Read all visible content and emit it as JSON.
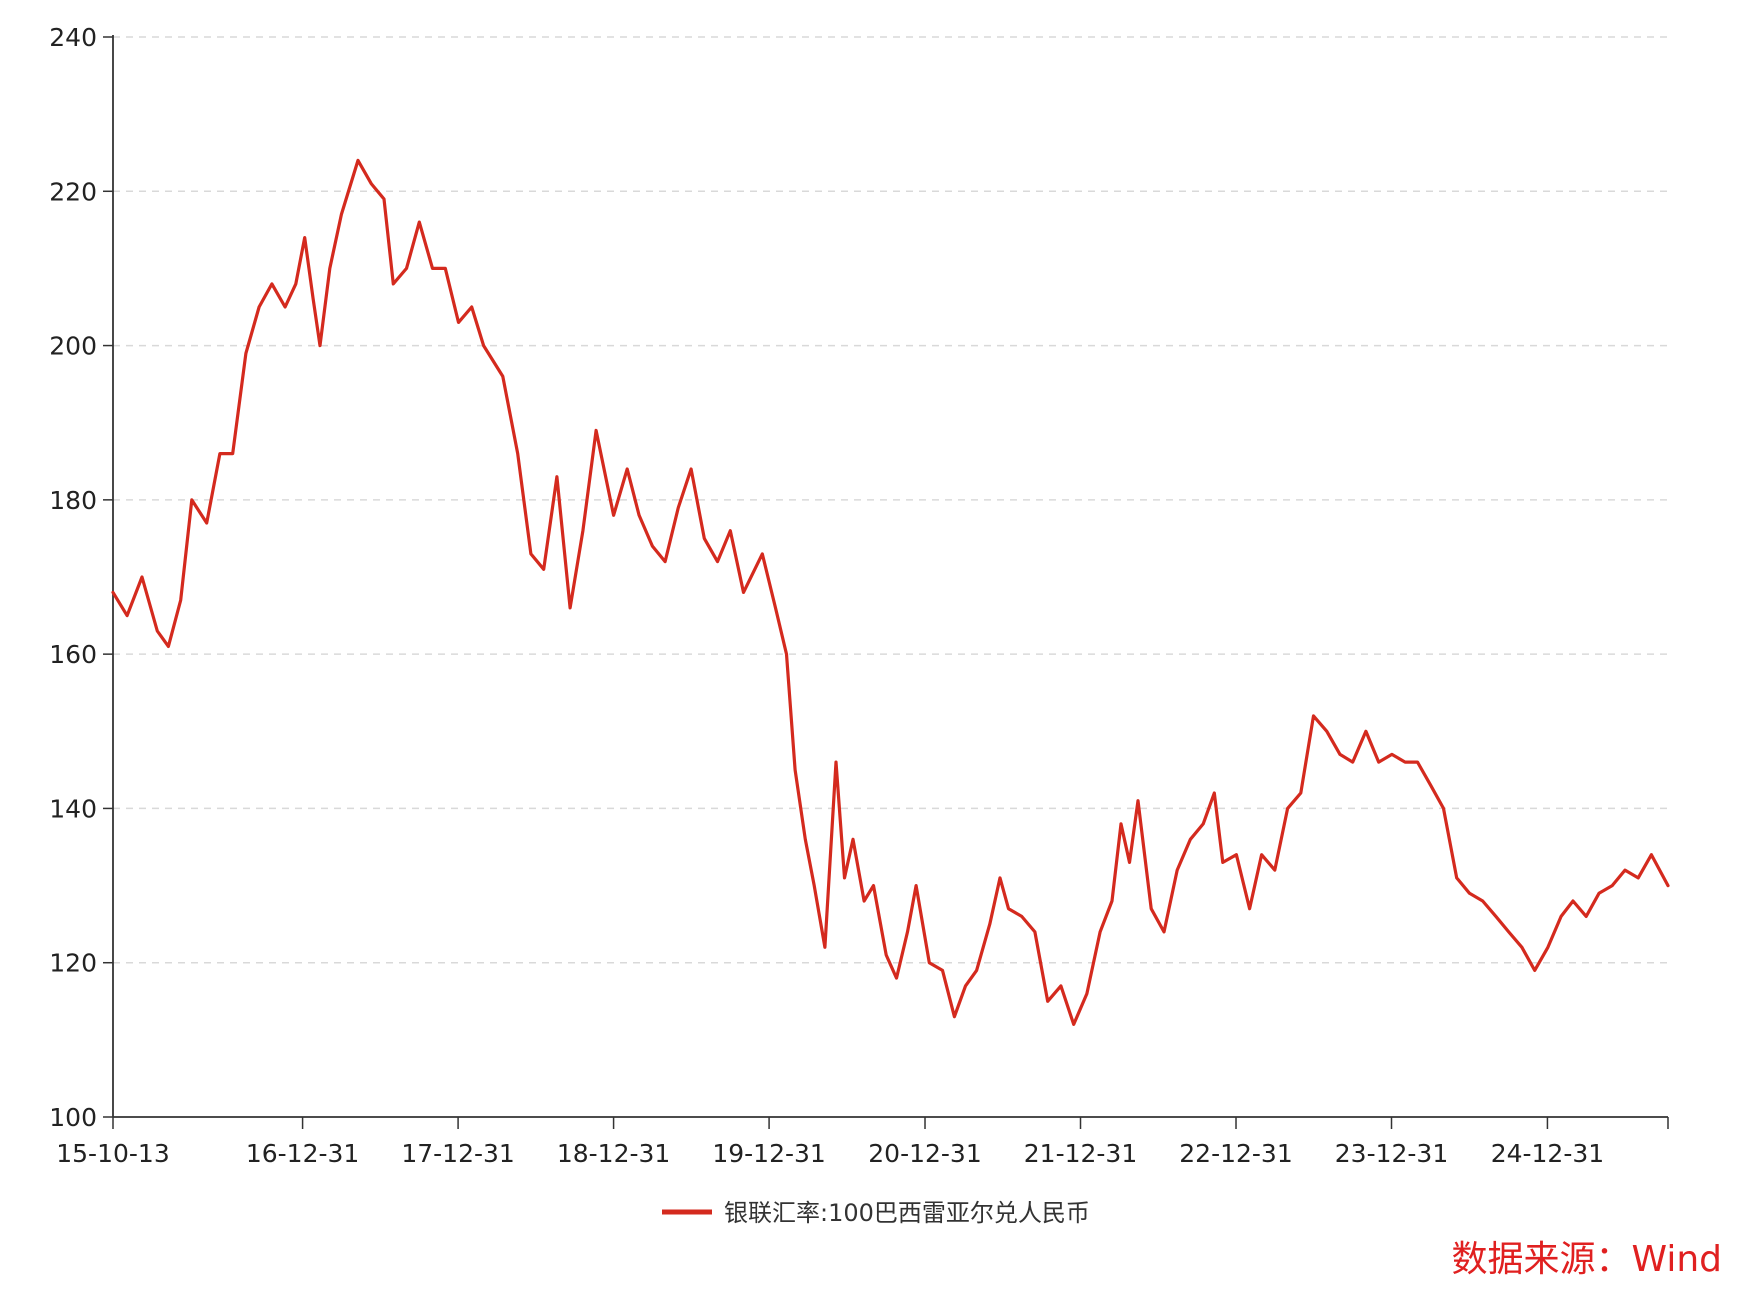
{
  "chart_data": {
    "type": "line",
    "title": "",
    "xlabel": "",
    "ylabel": "",
    "ylim": [
      100,
      240
    ],
    "y_ticks": [
      "100",
      "120",
      "140",
      "160",
      "180",
      "200",
      "220",
      "240"
    ],
    "x_ticks": [
      "15-10-13",
      "16-12-31",
      "17-12-31",
      "18-12-31",
      "19-12-31",
      "20-12-31",
      "21-12-31",
      "22-12-31",
      "23-12-31",
      "24-12-31"
    ],
    "grid": "horizontal-dashed",
    "legend_position": "bottom-center",
    "series": [
      {
        "name": "银联汇率:100巴西雷亚尔兑人民币",
        "color": "#d42a1e",
        "points": [
          [
            "2015-10-13",
            168.0
          ],
          [
            "2015-11-15",
            165.0
          ],
          [
            "2015-12-20",
            170.0
          ],
          [
            "2016-01-25",
            163.0
          ],
          [
            "2016-02-20",
            161.0
          ],
          [
            "2016-03-20",
            167.0
          ],
          [
            "2016-04-15",
            180.0
          ],
          [
            "2016-05-20",
            177.0
          ],
          [
            "2016-06-20",
            186.0
          ],
          [
            "2016-07-20",
            186.0
          ],
          [
            "2016-08-20",
            199.0
          ],
          [
            "2016-09-20",
            205.0
          ],
          [
            "2016-10-20",
            208.0
          ],
          [
            "2016-11-20",
            205.0
          ],
          [
            "2016-12-15",
            208.0
          ],
          [
            "2017-01-05",
            214.0
          ],
          [
            "2017-01-25",
            206.0
          ],
          [
            "2017-02-10",
            200.0
          ],
          [
            "2017-03-05",
            210.0
          ],
          [
            "2017-04-01",
            217.0
          ],
          [
            "2017-05-10",
            224.0
          ],
          [
            "2017-06-10",
            221.0
          ],
          [
            "2017-07-10",
            219.0
          ],
          [
            "2017-08-01",
            208.0
          ],
          [
            "2017-09-01",
            210.0
          ],
          [
            "2017-10-01",
            216.0
          ],
          [
            "2017-11-01",
            210.0
          ],
          [
            "2017-12-01",
            210.0
          ],
          [
            "2018-01-01",
            203.0
          ],
          [
            "2018-02-01",
            205.0
          ],
          [
            "2018-03-01",
            200.0
          ],
          [
            "2018-04-15",
            196.0
          ],
          [
            "2018-05-20",
            186.0
          ],
          [
            "2018-06-20",
            173.0
          ],
          [
            "2018-07-20",
            171.0
          ],
          [
            "2018-08-20",
            183.0
          ],
          [
            "2018-09-20",
            166.0
          ],
          [
            "2018-10-20",
            176.0
          ],
          [
            "2018-11-20",
            189.0
          ],
          [
            "2018-12-31",
            178.0
          ],
          [
            "2019-02-01",
            184.0
          ],
          [
            "2019-03-01",
            178.0
          ],
          [
            "2019-04-01",
            174.0
          ],
          [
            "2019-05-01",
            172.0
          ],
          [
            "2019-06-01",
            179.0
          ],
          [
            "2019-07-01",
            184.0
          ],
          [
            "2019-08-01",
            175.0
          ],
          [
            "2019-09-01",
            172.0
          ],
          [
            "2019-10-01",
            176.0
          ],
          [
            "2019-11-01",
            168.0
          ],
          [
            "2019-12-15",
            173.0
          ],
          [
            "2020-01-15",
            166.0
          ],
          [
            "2020-02-10",
            160.0
          ],
          [
            "2020-03-01",
            145.0
          ],
          [
            "2020-03-25",
            136.0
          ],
          [
            "2020-04-15",
            130.0
          ],
          [
            "2020-05-10",
            122.0
          ],
          [
            "2020-06-05",
            146.0
          ],
          [
            "2020-06-25",
            131.0
          ],
          [
            "2020-07-15",
            136.0
          ],
          [
            "2020-08-10",
            128.0
          ],
          [
            "2020-09-01",
            130.0
          ],
          [
            "2020-10-01",
            121.0
          ],
          [
            "2020-10-25",
            118.0
          ],
          [
            "2020-11-20",
            124.0
          ],
          [
            "2020-12-10",
            130.0
          ],
          [
            "2021-01-10",
            120.0
          ],
          [
            "2021-02-10",
            119.0
          ],
          [
            "2021-03-10",
            113.0
          ],
          [
            "2021-04-05",
            117.0
          ],
          [
            "2021-05-01",
            119.0
          ],
          [
            "2021-06-01",
            125.0
          ],
          [
            "2021-06-25",
            131.0
          ],
          [
            "2021-07-15",
            127.0
          ],
          [
            "2021-08-15",
            126.0
          ],
          [
            "2021-09-15",
            124.0
          ],
          [
            "2021-10-15",
            115.0
          ],
          [
            "2021-11-15",
            117.0
          ],
          [
            "2021-12-15",
            112.0
          ],
          [
            "2022-01-15",
            116.0
          ],
          [
            "2022-02-15",
            124.0
          ],
          [
            "2022-03-15",
            128.0
          ],
          [
            "2022-04-05",
            138.0
          ],
          [
            "2022-04-25",
            133.0
          ],
          [
            "2022-05-15",
            141.0
          ],
          [
            "2022-06-15",
            127.0
          ],
          [
            "2022-07-15",
            124.0
          ],
          [
            "2022-08-15",
            132.0
          ],
          [
            "2022-09-15",
            136.0
          ],
          [
            "2022-10-15",
            138.0
          ],
          [
            "2022-11-10",
            142.0
          ],
          [
            "2022-11-30",
            133.0
          ],
          [
            "2023-01-01",
            134.0
          ],
          [
            "2023-02-01",
            127.0
          ],
          [
            "2023-03-01",
            134.0
          ],
          [
            "2023-04-01",
            132.0
          ],
          [
            "2023-05-01",
            140.0
          ],
          [
            "2023-06-01",
            142.0
          ],
          [
            "2023-07-01",
            152.0
          ],
          [
            "2023-08-01",
            150.0
          ],
          [
            "2023-09-01",
            147.0
          ],
          [
            "2023-10-01",
            146.0
          ],
          [
            "2023-11-01",
            150.0
          ],
          [
            "2023-12-01",
            146.0
          ],
          [
            "2024-01-01",
            147.0
          ],
          [
            "2024-02-01",
            146.0
          ],
          [
            "2024-03-01",
            146.0
          ],
          [
            "2024-04-01",
            143.0
          ],
          [
            "2024-05-01",
            140.0
          ],
          [
            "2024-06-01",
            131.0
          ],
          [
            "2024-07-01",
            129.0
          ],
          [
            "2024-08-01",
            128.0
          ],
          [
            "2024-09-01",
            126.0
          ],
          [
            "2024-10-01",
            124.0
          ],
          [
            "2024-11-01",
            122.0
          ],
          [
            "2024-12-01",
            119.0
          ],
          [
            "2025-01-01",
            122.0
          ],
          [
            "2025-02-01",
            126.0
          ],
          [
            "2025-03-01",
            128.0
          ],
          [
            "2025-04-01",
            126.0
          ],
          [
            "2025-05-01",
            129.0
          ],
          [
            "2025-06-01",
            130.0
          ],
          [
            "2025-07-01",
            132.0
          ],
          [
            "2025-08-01",
            131.0
          ],
          [
            "2025-09-01",
            134.0
          ],
          [
            "2025-10-10",
            130.0
          ]
        ]
      }
    ]
  },
  "source_note": "数据来源：Wind"
}
